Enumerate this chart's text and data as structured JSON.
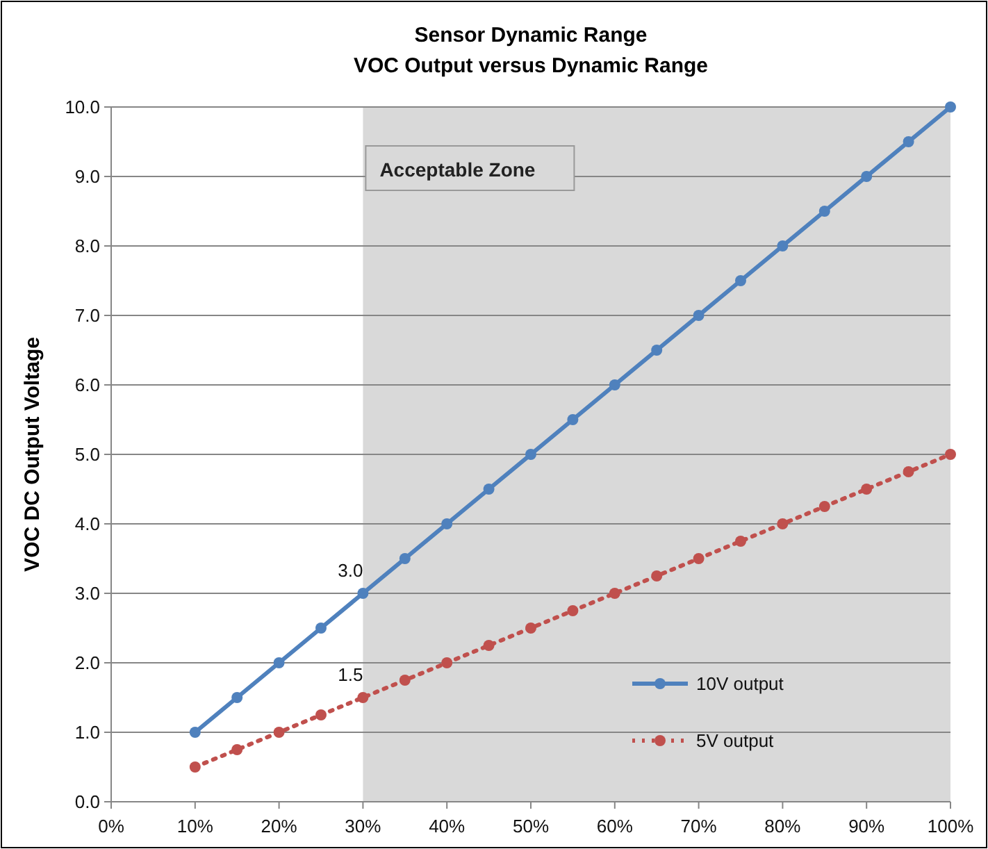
{
  "chart_data": {
    "type": "line",
    "title": "Sensor Dynamic Range",
    "subtitle": "VOC Output versus Dynamic Range",
    "ylabel": "VOC DC Output Voltage",
    "x": [
      10,
      15,
      20,
      25,
      30,
      35,
      40,
      45,
      50,
      55,
      60,
      65,
      70,
      75,
      80,
      85,
      90,
      95,
      100
    ],
    "series": [
      {
        "name": "10V output",
        "color": "#4f81bd",
        "line_style": "solid",
        "values": [
          1.0,
          1.5,
          2.0,
          2.5,
          3.0,
          3.5,
          4.0,
          4.5,
          5.0,
          5.5,
          6.0,
          6.5,
          7.0,
          7.5,
          8.0,
          8.5,
          9.0,
          9.5,
          10.0
        ]
      },
      {
        "name": "5V output",
        "color": "#c0504d",
        "line_style": "dotted",
        "values": [
          0.5,
          0.75,
          1.0,
          1.25,
          1.5,
          1.75,
          2.0,
          2.25,
          2.5,
          2.75,
          3.0,
          3.25,
          3.5,
          3.75,
          4.0,
          4.25,
          4.5,
          4.75,
          5.0
        ]
      }
    ],
    "xlim": [
      0,
      100
    ],
    "xticks": [
      {
        "value": 0,
        "label": "0%"
      },
      {
        "value": 10,
        "label": "10%"
      },
      {
        "value": 20,
        "label": "20%"
      },
      {
        "value": 30,
        "label": "30%"
      },
      {
        "value": 40,
        "label": "40%"
      },
      {
        "value": 50,
        "label": "50%"
      },
      {
        "value": 60,
        "label": "60%"
      },
      {
        "value": 70,
        "label": "70%"
      },
      {
        "value": 80,
        "label": "80%"
      },
      {
        "value": 90,
        "label": "90%"
      },
      {
        "value": 100,
        "label": "100%"
      }
    ],
    "ylim": [
      0,
      10
    ],
    "yticks": [
      {
        "value": 0,
        "label": "0.0"
      },
      {
        "value": 1,
        "label": "1.0"
      },
      {
        "value": 2,
        "label": "2.0"
      },
      {
        "value": 3,
        "label": "3.0"
      },
      {
        "value": 4,
        "label": "4.0"
      },
      {
        "value": 5,
        "label": "5.0"
      },
      {
        "value": 6,
        "label": "6.0"
      },
      {
        "value": 7,
        "label": "7.0"
      },
      {
        "value": 8,
        "label": "8.0"
      },
      {
        "value": 9,
        "label": "9.0"
      },
      {
        "value": 10,
        "label": "10.0"
      }
    ],
    "bands": [
      {
        "axis": "x",
        "from": 30,
        "to": 100,
        "label": "Acceptable Zone",
        "color": "#d9d9d9"
      }
    ],
    "annotations": [
      {
        "text": "3.0",
        "x": 30,
        "y": 3.0
      },
      {
        "text": "1.5",
        "x": 30,
        "y": 1.5
      }
    ],
    "grid": "y",
    "legend": "bottom right",
    "marker": "circle"
  }
}
